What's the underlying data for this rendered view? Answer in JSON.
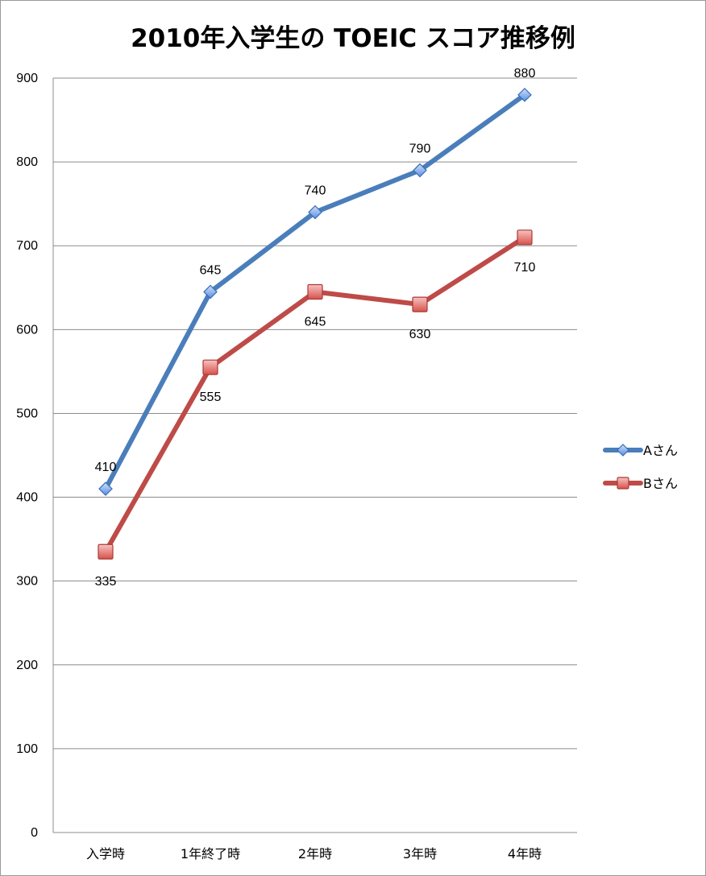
{
  "chart_data": {
    "type": "line",
    "title": "2010年入学生の TOEIC スコア推移例",
    "categories": [
      "入学時",
      "1年終了時",
      "2年時",
      "3年時",
      "4年時"
    ],
    "series": [
      {
        "name": "Aさん",
        "values": [
          410,
          645,
          740,
          790,
          880
        ],
        "color": "#4a7ebb",
        "marker": "diamond"
      },
      {
        "name": "Bさん",
        "values": [
          335,
          555,
          645,
          630,
          710
        ],
        "color": "#be4b48",
        "marker": "square"
      }
    ],
    "ylim": [
      0,
      900
    ],
    "yticks": [
      0,
      100,
      200,
      300,
      400,
      500,
      600,
      700,
      800,
      900
    ],
    "grid": true,
    "legend": "right",
    "data_labels": true
  }
}
